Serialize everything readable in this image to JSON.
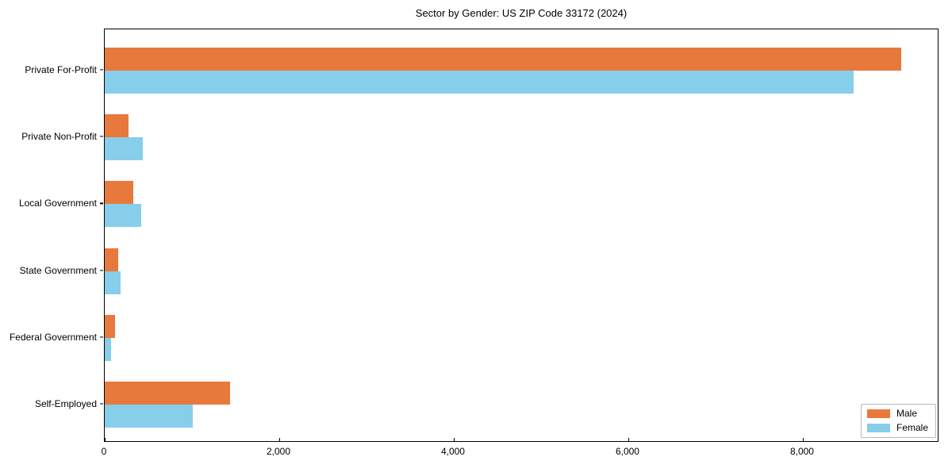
{
  "title": "Sector by Gender: US ZIP Code 33172 (2024)",
  "chart_data": {
    "type": "bar",
    "orientation": "horizontal",
    "title": "Sector by Gender: US ZIP Code 33172 (2024)",
    "categories": [
      "Private For-Profit",
      "Private Non-Profit",
      "Local Government",
      "State Government",
      "Federal Government",
      "Self-Employed"
    ],
    "series": [
      {
        "name": "Male",
        "color": "#e8793d",
        "values": [
          9130,
          270,
          330,
          150,
          120,
          1440
        ]
      },
      {
        "name": "Female",
        "color": "#87ceeb",
        "values": [
          8580,
          440,
          420,
          180,
          75,
          1010
        ]
      }
    ],
    "xlabel": "",
    "ylabel": "",
    "xlim": [
      0,
      9564
    ],
    "xticks": [
      0,
      2000,
      4000,
      6000,
      8000
    ],
    "xtick_labels": [
      "0",
      "2,000",
      "4,000",
      "6,000",
      "8,000"
    ],
    "grid": false,
    "legend_position": "lower right"
  },
  "legend": {
    "items": [
      {
        "label": "Male",
        "color": "#e8793d"
      },
      {
        "label": "Female",
        "color": "#87ceeb"
      }
    ]
  }
}
